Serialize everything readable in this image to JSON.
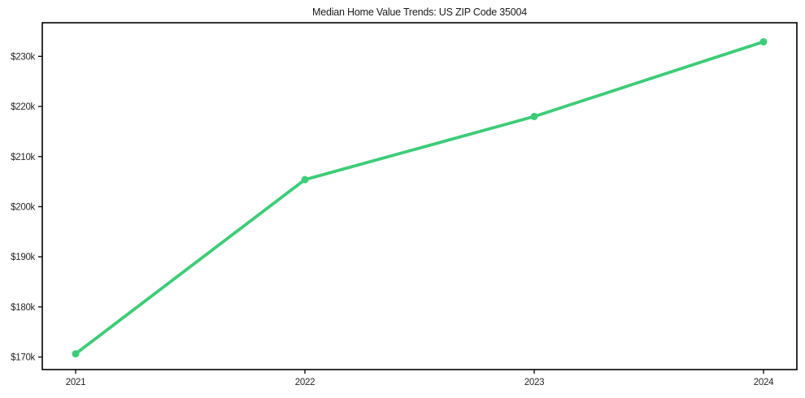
{
  "page": {
    "background_color": "#ffffff"
  },
  "chart_data": {
    "type": "line",
    "title": "Median Home Value Trends: US ZIP Code 35004",
    "x": [
      "2021",
      "2022",
      "2023",
      "2024"
    ],
    "series": [
      {
        "name": "Median Home Value",
        "values": [
          170650,
          205400,
          218000,
          232900
        ],
        "color": "#3dcc78"
      }
    ],
    "xlabel": "",
    "ylabel": "",
    "ylim": [
      167500,
      236700
    ],
    "yticks": [
      170000,
      180000,
      190000,
      200000,
      210000,
      220000,
      230000
    ],
    "ytick_labels": [
      "$170k",
      "$180k",
      "$190k",
      "$200k",
      "$210k",
      "$220k",
      "$230k"
    ],
    "xtick_labels": [
      "2021",
      "2022",
      "2023",
      "2024"
    ],
    "grid": false,
    "legend_position": "none",
    "marker": "circle",
    "line_width": 3.8,
    "marker_radius": 4.5,
    "axis_color": "#000000",
    "tick_label_color": "#262626"
  }
}
